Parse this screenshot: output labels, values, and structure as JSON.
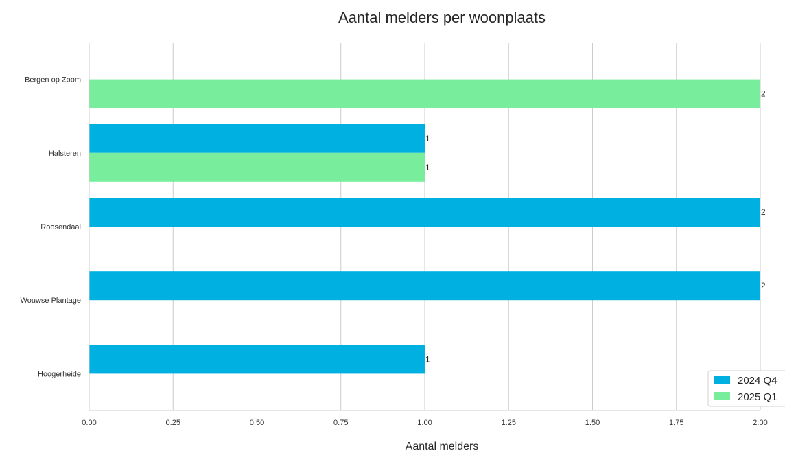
{
  "chart_data": {
    "type": "bar",
    "orientation": "horizontal",
    "title": "Aantal melders per woonplaats",
    "xlabel": "Aantal melders",
    "ylabel": "",
    "categories": [
      "Bergen op Zoom",
      "Halsteren",
      "Roosendaal",
      "Wouwse Plantage",
      "Hoogerheide"
    ],
    "series": [
      {
        "name": "2024 Q4",
        "color": "#00b0e0",
        "values": [
          null,
          1,
          2,
          2,
          1
        ]
      },
      {
        "name": "2025 Q1",
        "color": "#78ee9c",
        "values": [
          2,
          1,
          null,
          null,
          null
        ]
      }
    ],
    "xlim": [
      0,
      2
    ],
    "xticks": [
      "0.00",
      "0.25",
      "0.50",
      "0.75",
      "1.00",
      "1.25",
      "1.50",
      "1.75",
      "2.00"
    ],
    "grid": true,
    "legend_position": "bottom-right"
  }
}
